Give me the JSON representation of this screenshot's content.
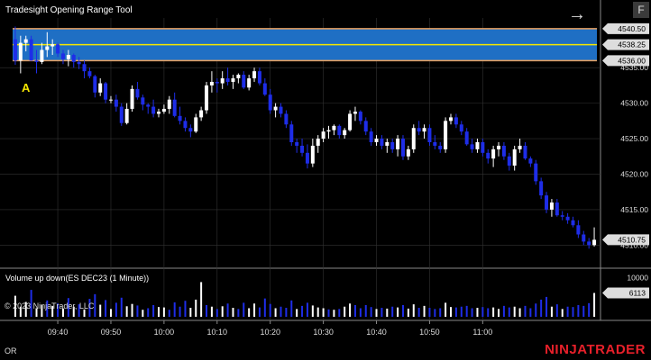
{
  "window": {
    "indicator_title": "Tradesight Opening Range Tool",
    "volume_title": "Volume up down(ES DEC23 (1 Minute))",
    "copyright": "© 2023 NinjaTrader, LLC",
    "f_button": "F",
    "marker_label": "A",
    "status_left": "OR",
    "brand": "NINJATRADER"
  },
  "colors": {
    "up": "#ffffff",
    "down": "#1e2de8",
    "range_fill": "#1f6fc4",
    "range_border": "#e8a060",
    "mid_line": "#f5e600",
    "grid": "#333333",
    "price_tag": "#dddddd"
  },
  "chart_data": {
    "type": "candlestick",
    "x_ticks": [
      "09:40",
      "09:50",
      "10:00",
      "10:10",
      "10:20",
      "10:30",
      "10:40",
      "10:50",
      "11:00"
    ],
    "y_ticks": [
      "4535.00",
      "4530.00",
      "4525.00",
      "4520.00",
      "4515.00",
      "4510.00"
    ],
    "y_range": [
      4507,
      4542
    ],
    "opening_range": {
      "high": "4540.50",
      "mid": "4538.25",
      "low": "4536.00"
    },
    "last_price": "4510.75",
    "candles": [
      [
        4539.0,
        4540.8,
        4535.4,
        4536.0
      ],
      [
        4536.0,
        4539.5,
        4534.2,
        4538.5
      ],
      [
        4538.5,
        4539.5,
        4537.3,
        4539.0
      ],
      [
        4539.0,
        4539.5,
        4536.0,
        4536.0
      ],
      [
        4536.0,
        4537.5,
        4534.2,
        4535.8
      ],
      [
        4535.8,
        4538.5,
        4535.5,
        4537.5
      ],
      [
        4537.5,
        4540.0,
        4536.5,
        4538.0
      ],
      [
        4538.0,
        4539.0,
        4536.8,
        4538.3
      ],
      [
        4538.3,
        4538.5,
        4536.5,
        4537.0
      ],
      [
        4537.0,
        4537.5,
        4535.5,
        4536.2
      ],
      [
        4536.2,
        4537.5,
        4535.2,
        4536.8
      ],
      [
        4536.8,
        4537.0,
        4535.0,
        4535.8
      ],
      [
        4535.8,
        4536.5,
        4534.8,
        4535.5
      ],
      [
        4535.5,
        4536.0,
        4533.5,
        4534.5
      ],
      [
        4534.5,
        4535.0,
        4533.5,
        4533.8
      ],
      [
        4533.8,
        4534.0,
        4530.8,
        4531.5
      ],
      [
        4531.5,
        4533.5,
        4531.0,
        4532.8
      ],
      [
        4532.8,
        4533.0,
        4530.0,
        4530.5
      ],
      [
        4530.5,
        4531.0,
        4530.0,
        4530.5
      ],
      [
        4530.5,
        4531.2,
        4528.8,
        4529.5
      ],
      [
        4529.5,
        4530.0,
        4526.8,
        4527.2
      ],
      [
        4527.2,
        4530.0,
        4527.0,
        4529.2
      ],
      [
        4529.2,
        4532.5,
        4528.8,
        4532.0
      ],
      [
        4532.0,
        4533.0,
        4530.5,
        4530.8
      ],
      [
        4530.8,
        4531.2,
        4529.0,
        4529.8
      ],
      [
        4529.8,
        4530.0,
        4528.5,
        4529.5
      ],
      [
        4529.5,
        4530.5,
        4528.0,
        4528.5
      ],
      [
        4528.5,
        4529.2,
        4528.0,
        4528.8
      ],
      [
        4528.8,
        4529.8,
        4528.5,
        4529.2
      ],
      [
        4529.2,
        4531.0,
        4528.5,
        4530.5
      ],
      [
        4530.5,
        4531.5,
        4528.0,
        4528.2
      ],
      [
        4528.2,
        4529.5,
        4527.0,
        4527.5
      ],
      [
        4527.5,
        4528.0,
        4526.0,
        4526.5
      ],
      [
        4526.5,
        4527.0,
        4525.2,
        4526.0
      ],
      [
        4526.0,
        4528.5,
        4525.8,
        4528.0
      ],
      [
        4528.0,
        4529.5,
        4527.5,
        4529.0
      ],
      [
        4529.0,
        4533.0,
        4528.5,
        4532.5
      ],
      [
        4532.5,
        4534.5,
        4531.5,
        4533.0
      ],
      [
        4533.0,
        4533.5,
        4531.5,
        4532.8
      ],
      [
        4532.8,
        4534.5,
        4532.0,
        4533.5
      ],
      [
        4533.5,
        4535.0,
        4532.5,
        4533.0
      ],
      [
        4533.0,
        4534.0,
        4532.0,
        4533.5
      ],
      [
        4533.5,
        4534.2,
        4532.8,
        4534.0
      ],
      [
        4534.0,
        4534.5,
        4532.0,
        4532.2
      ],
      [
        4532.2,
        4534.0,
        4531.8,
        4533.5
      ],
      [
        4533.5,
        4535.0,
        4533.0,
        4534.5
      ],
      [
        4534.5,
        4535.0,
        4532.5,
        4532.8
      ],
      [
        4532.8,
        4533.5,
        4531.0,
        4531.2
      ],
      [
        4531.2,
        4532.0,
        4528.5,
        4529.0
      ],
      [
        4529.0,
        4530.0,
        4528.0,
        4529.5
      ],
      [
        4529.5,
        4530.0,
        4528.0,
        4528.5
      ],
      [
        4528.5,
        4529.0,
        4526.5,
        4527.0
      ],
      [
        4527.0,
        4527.5,
        4524.0,
        4524.5
      ],
      [
        4524.5,
        4525.0,
        4523.0,
        4524.0
      ],
      [
        4524.0,
        4525.0,
        4522.5,
        4523.0
      ],
      [
        4523.0,
        4524.2,
        4520.8,
        4521.5
      ],
      [
        4521.5,
        4525.0,
        4521.0,
        4524.0
      ],
      [
        4524.0,
        4525.5,
        4523.0,
        4525.0
      ],
      [
        4525.0,
        4526.5,
        4524.5,
        4526.0
      ],
      [
        4526.0,
        4526.8,
        4525.0,
        4526.2
      ],
      [
        4526.2,
        4527.0,
        4525.5,
        4526.8
      ],
      [
        4526.8,
        4527.0,
        4525.0,
        4525.5
      ],
      [
        4525.5,
        4526.5,
        4525.0,
        4526.2
      ],
      [
        4526.2,
        4529.0,
        4526.0,
        4528.5
      ],
      [
        4528.5,
        4529.5,
        4527.5,
        4528.8
      ],
      [
        4528.8,
        4529.0,
        4527.0,
        4527.5
      ],
      [
        4527.5,
        4528.0,
        4525.5,
        4526.0
      ],
      [
        4526.0,
        4526.5,
        4524.0,
        4524.5
      ],
      [
        4524.5,
        4525.5,
        4524.0,
        4525.0
      ],
      [
        4525.0,
        4525.5,
        4523.5,
        4524.0
      ],
      [
        4524.0,
        4525.0,
        4523.0,
        4524.5
      ],
      [
        4524.5,
        4525.0,
        4523.0,
        4523.5
      ],
      [
        4523.5,
        4525.5,
        4522.5,
        4525.0
      ],
      [
        4525.0,
        4525.5,
        4522.0,
        4522.5
      ],
      [
        4522.5,
        4524.0,
        4522.0,
        4523.5
      ],
      [
        4523.5,
        4527.0,
        4523.0,
        4526.5
      ],
      [
        4526.5,
        4527.5,
        4525.5,
        4526.0
      ],
      [
        4526.0,
        4527.0,
        4525.0,
        4526.5
      ],
      [
        4526.5,
        4527.0,
        4524.0,
        4524.5
      ],
      [
        4524.5,
        4525.5,
        4523.5,
        4524.0
      ],
      [
        4524.0,
        4524.5,
        4523.0,
        4523.5
      ],
      [
        4523.5,
        4528.0,
        4523.0,
        4527.5
      ],
      [
        4527.5,
        4528.5,
        4527.0,
        4528.0
      ],
      [
        4528.0,
        4528.5,
        4526.5,
        4527.0
      ],
      [
        4527.0,
        4527.5,
        4525.5,
        4526.0
      ],
      [
        4526.0,
        4526.5,
        4524.0,
        4524.2
      ],
      [
        4524.2,
        4525.0,
        4523.0,
        4523.5
      ],
      [
        4523.5,
        4525.0,
        4523.0,
        4524.5
      ],
      [
        4524.5,
        4525.0,
        4522.5,
        4523.0
      ],
      [
        4523.0,
        4523.5,
        4521.5,
        4522.2
      ],
      [
        4522.2,
        4524.0,
        4521.0,
        4523.5
      ],
      [
        4523.5,
        4524.5,
        4522.5,
        4524.0
      ],
      [
        4524.0,
        4524.5,
        4522.0,
        4522.5
      ],
      [
        4522.5,
        4523.0,
        4520.5,
        4521.2
      ],
      [
        4521.2,
        4524.0,
        4520.5,
        4523.5
      ],
      [
        4523.5,
        4525.0,
        4523.0,
        4524.0
      ],
      [
        4524.0,
        4524.5,
        4522.0,
        4522.2
      ],
      [
        4522.2,
        4522.5,
        4521.0,
        4521.5
      ],
      [
        4521.5,
        4522.0,
        4518.5,
        4519.0
      ],
      [
        4519.0,
        4519.5,
        4516.5,
        4517.0
      ],
      [
        4517.0,
        4517.5,
        4514.5,
        4515.0
      ],
      [
        4515.0,
        4516.5,
        4514.0,
        4516.0
      ],
      [
        4516.0,
        4516.5,
        4514.0,
        4514.2
      ],
      [
        4514.2,
        4514.8,
        4513.5,
        4514.0
      ],
      [
        4514.0,
        4514.5,
        4513.0,
        4513.5
      ],
      [
        4513.5,
        4514.0,
        4512.5,
        4512.8
      ],
      [
        4512.8,
        4513.5,
        4511.0,
        4511.5
      ],
      [
        4511.5,
        4512.0,
        4510.0,
        4510.5
      ],
      [
        4510.5,
        4511.0,
        4509.5,
        4510.0
      ],
      [
        4510.0,
        4512.5,
        4509.8,
        4510.75
      ]
    ],
    "volume": [
      [
        1,
        5400
      ],
      [
        1,
        2600
      ],
      [
        1,
        3800
      ],
      [
        0,
        6900
      ],
      [
        1,
        2200
      ],
      [
        1,
        3000
      ],
      [
        0,
        4200
      ],
      [
        1,
        2800
      ],
      [
        0,
        3400
      ],
      [
        1,
        2100
      ],
      [
        0,
        4800
      ],
      [
        1,
        2600
      ],
      [
        0,
        3200
      ],
      [
        1,
        1900
      ],
      [
        0,
        4600
      ],
      [
        0,
        5800
      ],
      [
        1,
        3100
      ],
      [
        0,
        4300
      ],
      [
        1,
        2000
      ],
      [
        0,
        3600
      ],
      [
        0,
        4900
      ],
      [
        1,
        2700
      ],
      [
        1,
        3300
      ],
      [
        0,
        2900
      ],
      [
        1,
        1800
      ],
      [
        0,
        2200
      ],
      [
        0,
        3000
      ],
      [
        1,
        2500
      ],
      [
        1,
        2400
      ],
      [
        0,
        1800
      ],
      [
        0,
        3700
      ],
      [
        0,
        2600
      ],
      [
        0,
        4100
      ],
      [
        1,
        2300
      ],
      [
        1,
        4400
      ],
      [
        1,
        8900
      ],
      [
        0,
        3000
      ],
      [
        1,
        2600
      ],
      [
        0,
        2000
      ],
      [
        1,
        2700
      ],
      [
        0,
        3400
      ],
      [
        1,
        2300
      ],
      [
        0,
        2000
      ],
      [
        0,
        3600
      ],
      [
        1,
        2200
      ],
      [
        1,
        3400
      ],
      [
        0,
        2400
      ],
      [
        0,
        4700
      ],
      [
        0,
        3300
      ],
      [
        1,
        2200
      ],
      [
        0,
        2600
      ],
      [
        0,
        2300
      ],
      [
        0,
        4200
      ],
      [
        1,
        2000
      ],
      [
        0,
        2800
      ],
      [
        0,
        3600
      ],
      [
        1,
        2900
      ],
      [
        1,
        2400
      ],
      [
        1,
        2200
      ],
      [
        0,
        1900
      ],
      [
        1,
        1800
      ],
      [
        0,
        2000
      ],
      [
        1,
        2600
      ],
      [
        1,
        3400
      ],
      [
        0,
        3000
      ],
      [
        0,
        2200
      ],
      [
        0,
        3000
      ],
      [
        0,
        2500
      ],
      [
        1,
        2000
      ],
      [
        0,
        2300
      ],
      [
        1,
        2100
      ],
      [
        0,
        2600
      ],
      [
        1,
        2400
      ],
      [
        0,
        3000
      ],
      [
        1,
        2100
      ],
      [
        1,
        3200
      ],
      [
        0,
        2300
      ],
      [
        1,
        2800
      ],
      [
        0,
        2300
      ],
      [
        0,
        2000
      ],
      [
        0,
        2200
      ],
      [
        1,
        3600
      ],
      [
        1,
        2500
      ],
      [
        0,
        2400
      ],
      [
        0,
        2600
      ],
      [
        0,
        2800
      ],
      [
        0,
        2200
      ],
      [
        1,
        2300
      ],
      [
        0,
        2500
      ],
      [
        0,
        2200
      ],
      [
        1,
        2400
      ],
      [
        1,
        2000
      ],
      [
        0,
        2800
      ],
      [
        0,
        2400
      ],
      [
        1,
        2600
      ],
      [
        1,
        2200
      ],
      [
        0,
        2800
      ],
      [
        0,
        2200
      ],
      [
        0,
        3400
      ],
      [
        0,
        4400
      ],
      [
        0,
        5100
      ],
      [
        1,
        2600
      ],
      [
        0,
        3200
      ],
      [
        1,
        2000
      ],
      [
        0,
        2600
      ],
      [
        0,
        2500
      ],
      [
        0,
        3000
      ],
      [
        0,
        2800
      ],
      [
        0,
        3500
      ],
      [
        1,
        6113
      ]
    ],
    "volume_ticks": [
      "10000"
    ],
    "volume_range": [
      0,
      12000
    ],
    "last_volume": "6113"
  }
}
